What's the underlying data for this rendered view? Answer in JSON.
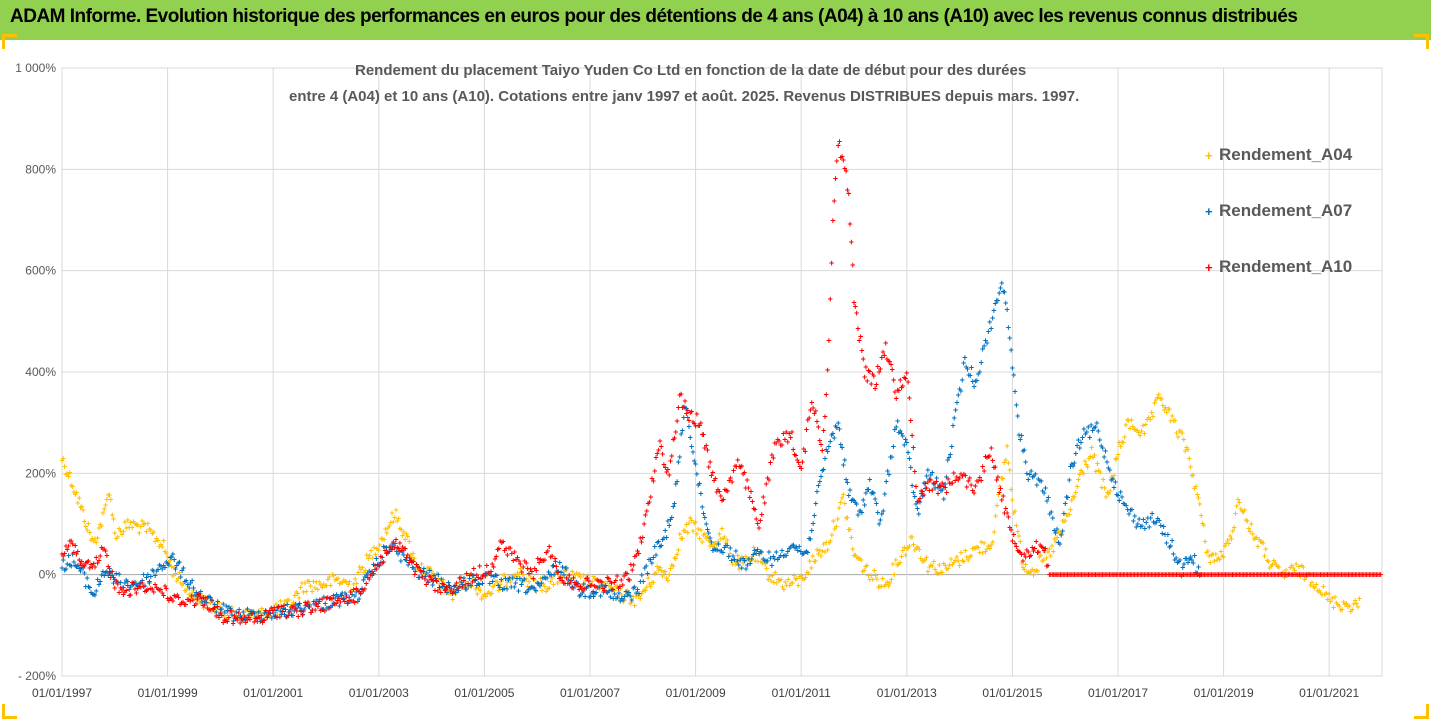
{
  "banner": {
    "title": "ADAM Informe. Evolution historique des performances en euros pour des détentions de 4 ans (A04) à 10 ans (A10) avec les revenus connus distribués"
  },
  "chart_data": {
    "type": "scatter",
    "title_line1": "Rendement du placement Taiyo Yuden Co Ltd en fonction de la date de début pour des durées",
    "title_line2": "entre 4 (A04) et 10 ans (A10). Cotations entre janv 1997 et août. 2025. Revenus DISTRIBUES depuis mars. 1997.",
    "y_ticks": [
      -200,
      0,
      200,
      400,
      600,
      800,
      1000
    ],
    "y_tick_labels": [
      "- 200%",
      "0%",
      "200%",
      "400%",
      "600%",
      "800%",
      "1 000%"
    ],
    "ylim": [
      -200,
      1000
    ],
    "x_tick_labels": [
      "01/01/1997",
      "01/01/1999",
      "01/01/2001",
      "01/01/2003",
      "01/01/2005",
      "01/01/2007",
      "01/01/2009",
      "01/01/2011",
      "01/01/2013",
      "01/01/2015",
      "01/01/2017",
      "01/01/2019",
      "01/01/2021"
    ],
    "x_tick_years": [
      1997,
      1999,
      2001,
      2003,
      2005,
      2007,
      2009,
      2011,
      2013,
      2015,
      2017,
      2019,
      2021
    ],
    "xlim": [
      1997.0,
      2022.0
    ],
    "grid": true,
    "legend_position": "top-right",
    "series": [
      {
        "name": "Rendement_A04",
        "color": "#ffc000",
        "points": [
          [
            1997.0,
            230
          ],
          [
            1997.2,
            180
          ],
          [
            1997.4,
            120
          ],
          [
            1997.6,
            60
          ],
          [
            1997.8,
            120
          ],
          [
            1997.9,
            170
          ],
          [
            1998.0,
            80
          ],
          [
            1998.3,
            100
          ],
          [
            1998.6,
            90
          ],
          [
            1998.9,
            60
          ],
          [
            1999.1,
            10
          ],
          [
            1999.3,
            -20
          ],
          [
            1999.6,
            -50
          ],
          [
            2000.0,
            -70
          ],
          [
            2000.3,
            -80
          ],
          [
            2000.7,
            -80
          ],
          [
            2001.0,
            -70
          ],
          [
            2001.3,
            -60
          ],
          [
            2001.6,
            -20
          ],
          [
            2001.9,
            -20
          ],
          [
            2002.2,
            -10
          ],
          [
            2002.5,
            -20
          ],
          [
            2002.8,
            30
          ],
          [
            2003.1,
            80
          ],
          [
            2003.3,
            120
          ],
          [
            2003.5,
            80
          ],
          [
            2003.7,
            20
          ],
          [
            2004.0,
            0
          ],
          [
            2004.2,
            -20
          ],
          [
            2004.4,
            -40
          ],
          [
            2004.7,
            -10
          ],
          [
            2005.0,
            -40
          ],
          [
            2005.3,
            -20
          ],
          [
            2005.6,
            10
          ],
          [
            2005.9,
            -20
          ],
          [
            2006.2,
            -20
          ],
          [
            2006.5,
            0
          ],
          [
            2006.8,
            -10
          ],
          [
            2007.2,
            -20
          ],
          [
            2007.6,
            -40
          ],
          [
            2007.9,
            -50
          ],
          [
            2008.1,
            -20
          ],
          [
            2008.3,
            10
          ],
          [
            2008.5,
            0
          ],
          [
            2008.7,
            70
          ],
          [
            2008.9,
            100
          ],
          [
            2009.1,
            80
          ],
          [
            2009.3,
            60
          ],
          [
            2009.5,
            80
          ],
          [
            2009.7,
            30
          ],
          [
            2009.9,
            20
          ],
          [
            2010.1,
            40
          ],
          [
            2010.4,
            0
          ],
          [
            2010.7,
            -20
          ],
          [
            2011.0,
            -10
          ],
          [
            2011.3,
            40
          ],
          [
            2011.5,
            60
          ],
          [
            2011.8,
            150
          ],
          [
            2012.0,
            40
          ],
          [
            2012.3,
            0
          ],
          [
            2012.6,
            -20
          ],
          [
            2012.9,
            40
          ],
          [
            2013.1,
            70
          ],
          [
            2013.4,
            20
          ],
          [
            2013.7,
            10
          ],
          [
            2014.0,
            30
          ],
          [
            2014.3,
            50
          ],
          [
            2014.6,
            60
          ],
          [
            2014.9,
            250
          ],
          [
            2015.0,
            150
          ],
          [
            2015.2,
            20
          ],
          [
            2015.4,
            10
          ],
          [
            2015.7,
            40
          ],
          [
            2015.9,
            80
          ],
          [
            2016.1,
            130
          ],
          [
            2016.3,
            200
          ],
          [
            2016.5,
            240
          ],
          [
            2016.8,
            150
          ],
          [
            2017.0,
            240
          ],
          [
            2017.2,
            300
          ],
          [
            2017.5,
            280
          ],
          [
            2017.8,
            350
          ],
          [
            2018.0,
            310
          ],
          [
            2018.3,
            250
          ],
          [
            2018.5,
            160
          ],
          [
            2018.7,
            40
          ],
          [
            2018.9,
            30
          ],
          [
            2019.1,
            60
          ],
          [
            2019.3,
            150
          ],
          [
            2019.5,
            90
          ],
          [
            2019.7,
            60
          ],
          [
            2019.9,
            20
          ],
          [
            2020.1,
            0
          ],
          [
            2020.4,
            10
          ],
          [
            2020.7,
            -10
          ],
          [
            2021.0,
            -50
          ],
          [
            2021.3,
            -60
          ],
          [
            2021.6,
            -60
          ]
        ]
      },
      {
        "name": "Rendement_A07",
        "color": "#0070c0",
        "points": [
          [
            1997.0,
            20
          ],
          [
            1997.2,
            30
          ],
          [
            1997.4,
            0
          ],
          [
            1997.6,
            -40
          ],
          [
            1997.8,
            10
          ],
          [
            1998.0,
            -10
          ],
          [
            1998.3,
            -20
          ],
          [
            1998.6,
            -10
          ],
          [
            1998.9,
            20
          ],
          [
            1999.1,
            30
          ],
          [
            1999.3,
            0
          ],
          [
            1999.6,
            -40
          ],
          [
            2000.0,
            -70
          ],
          [
            2000.3,
            -80
          ],
          [
            2000.7,
            -80
          ],
          [
            2001.0,
            -75
          ],
          [
            2001.4,
            -70
          ],
          [
            2001.8,
            -60
          ],
          [
            2002.2,
            -50
          ],
          [
            2002.6,
            -40
          ],
          [
            2002.9,
            10
          ],
          [
            2003.2,
            60
          ],
          [
            2003.5,
            30
          ],
          [
            2003.8,
            0
          ],
          [
            2004.1,
            -10
          ],
          [
            2004.4,
            -30
          ],
          [
            2004.8,
            -10
          ],
          [
            2005.1,
            -10
          ],
          [
            2005.4,
            -20
          ],
          [
            2005.7,
            -20
          ],
          [
            2006.0,
            -30
          ],
          [
            2006.4,
            20
          ],
          [
            2006.8,
            -30
          ],
          [
            2007.2,
            -30
          ],
          [
            2007.6,
            -50
          ],
          [
            2007.9,
            -30
          ],
          [
            2008.2,
            40
          ],
          [
            2008.4,
            70
          ],
          [
            2008.6,
            140
          ],
          [
            2008.8,
            340
          ],
          [
            2008.9,
            280
          ],
          [
            2009.1,
            150
          ],
          [
            2009.3,
            60
          ],
          [
            2009.6,
            50
          ],
          [
            2009.9,
            20
          ],
          [
            2010.2,
            40
          ],
          [
            2010.5,
            30
          ],
          [
            2010.8,
            60
          ],
          [
            2011.1,
            40
          ],
          [
            2011.3,
            150
          ],
          [
            2011.5,
            250
          ],
          [
            2011.7,
            300
          ],
          [
            2011.9,
            160
          ],
          [
            2012.1,
            120
          ],
          [
            2012.3,
            180
          ],
          [
            2012.5,
            100
          ],
          [
            2012.8,
            300
          ],
          [
            2013.0,
            250
          ],
          [
            2013.2,
            120
          ],
          [
            2013.4,
            200
          ],
          [
            2013.7,
            160
          ],
          [
            2013.9,
            300
          ],
          [
            2014.1,
            420
          ],
          [
            2014.3,
            380
          ],
          [
            2014.6,
            500
          ],
          [
            2014.8,
            580
          ],
          [
            2014.95,
            480
          ],
          [
            2015.1,
            300
          ],
          [
            2015.3,
            200
          ],
          [
            2015.6,
            170
          ],
          [
            2015.9,
            60
          ],
          [
            2016.1,
            200
          ],
          [
            2016.3,
            270
          ],
          [
            2016.6,
            290
          ],
          [
            2016.9,
            190
          ],
          [
            2017.1,
            140
          ],
          [
            2017.4,
            100
          ],
          [
            2017.7,
            110
          ],
          [
            2018.0,
            60
          ],
          [
            2018.2,
            10
          ],
          [
            2018.4,
            40
          ],
          [
            2018.6,
            -20
          ]
        ]
      },
      {
        "name": "Rendement_A10",
        "color": "#ff0000",
        "points": [
          [
            1997.0,
            40
          ],
          [
            1997.2,
            60
          ],
          [
            1997.4,
            20
          ],
          [
            1997.6,
            10
          ],
          [
            1997.8,
            50
          ],
          [
            1998.0,
            -20
          ],
          [
            1998.3,
            -30
          ],
          [
            1998.6,
            -20
          ],
          [
            1998.9,
            -30
          ],
          [
            1999.1,
            -50
          ],
          [
            1999.4,
            -50
          ],
          [
            1999.7,
            -50
          ],
          [
            2000.0,
            -80
          ],
          [
            2000.4,
            -90
          ],
          [
            2000.8,
            -85
          ],
          [
            2001.1,
            -70
          ],
          [
            2001.5,
            -70
          ],
          [
            2001.9,
            -60
          ],
          [
            2002.3,
            -50
          ],
          [
            2002.6,
            -40
          ],
          [
            2002.9,
            10
          ],
          [
            2003.2,
            50
          ],
          [
            2003.4,
            60
          ],
          [
            2003.6,
            20
          ],
          [
            2003.9,
            -10
          ],
          [
            2004.2,
            -30
          ],
          [
            2004.5,
            -20
          ],
          [
            2004.8,
            0
          ],
          [
            2005.1,
            10
          ],
          [
            2005.3,
            60
          ],
          [
            2005.6,
            30
          ],
          [
            2005.9,
            0
          ],
          [
            2006.2,
            50
          ],
          [
            2006.5,
            -10
          ],
          [
            2006.9,
            -20
          ],
          [
            2007.3,
            -20
          ],
          [
            2007.7,
            -10
          ],
          [
            2007.9,
            40
          ],
          [
            2008.1,
            130
          ],
          [
            2008.3,
            260
          ],
          [
            2008.5,
            200
          ],
          [
            2008.7,
            350
          ],
          [
            2008.9,
            310
          ],
          [
            2009.1,
            300
          ],
          [
            2009.3,
            200
          ],
          [
            2009.5,
            150
          ],
          [
            2009.8,
            220
          ],
          [
            2010.0,
            170
          ],
          [
            2010.2,
            100
          ],
          [
            2010.5,
            250
          ],
          [
            2010.8,
            280
          ],
          [
            2011.0,
            200
          ],
          [
            2011.2,
            350
          ],
          [
            2011.4,
            250
          ],
          [
            2011.5,
            400
          ],
          [
            2011.6,
            700
          ],
          [
            2011.7,
            850
          ],
          [
            2011.8,
            820
          ],
          [
            2011.9,
            750
          ],
          [
            2012.0,
            550
          ],
          [
            2012.2,
            400
          ],
          [
            2012.4,
            380
          ],
          [
            2012.6,
            450
          ],
          [
            2012.8,
            360
          ],
          [
            2013.0,
            400
          ],
          [
            2013.2,
            150
          ],
          [
            2013.4,
            180
          ],
          [
            2013.7,
            170
          ],
          [
            2014.0,
            200
          ],
          [
            2014.3,
            170
          ],
          [
            2014.6,
            250
          ],
          [
            2014.8,
            150
          ],
          [
            2015.0,
            80
          ],
          [
            2015.2,
            40
          ],
          [
            2015.4,
            50
          ],
          [
            2015.6,
            60
          ],
          [
            2015.7,
            0
          ],
          [
            2022.0,
            0
          ]
        ]
      }
    ]
  }
}
